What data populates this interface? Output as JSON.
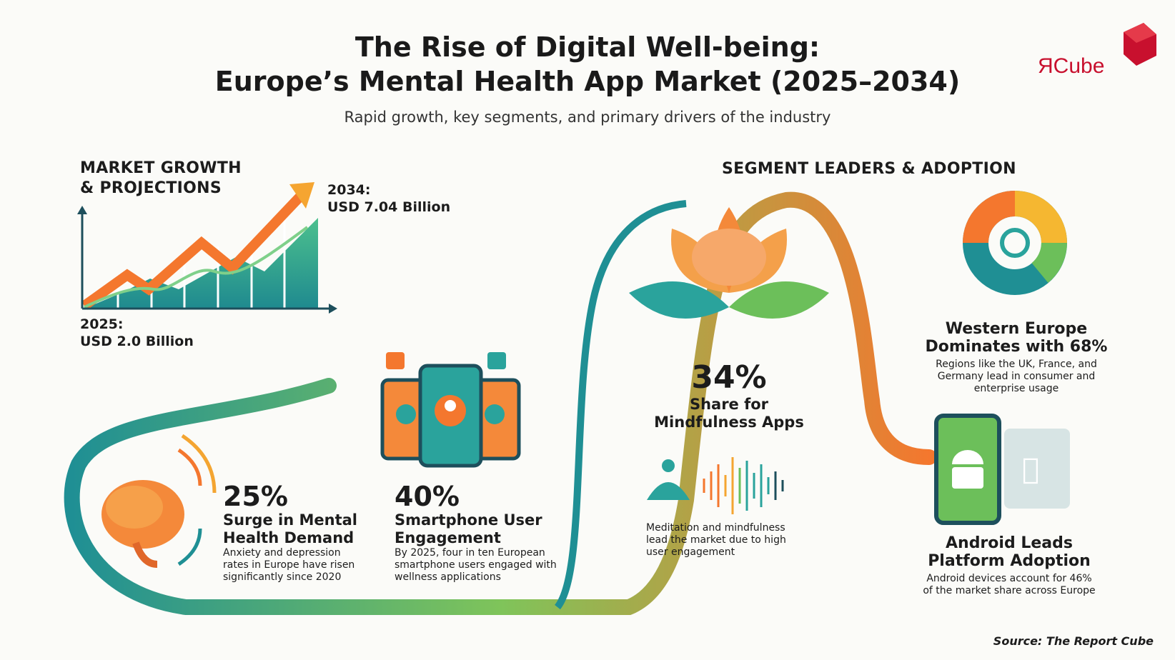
{
  "header": {
    "title_line1": "The Rise of Digital Well-being:",
    "title_line2": "Europe’s Mental Health App Market (2025–2034)",
    "subtitle": "Rapid growth, key segments, and primary drivers of the industry"
  },
  "logo": {
    "text": "ЯCube",
    "brand_color": "#c8102e"
  },
  "growth": {
    "heading_line1": "MARKET GROWTH",
    "heading_line2": "& PROJECTIONS",
    "start_year": "2025:",
    "start_value": "USD 2.0 Billion",
    "end_year": "2034:",
    "end_value": "USD 7.04 Billion"
  },
  "segments": {
    "heading": "SEGMENT LEADERS & ADOPTION"
  },
  "stats": [
    {
      "value": "25%",
      "title_line1": "Surge in Mental",
      "title_line2": "Health Demand",
      "desc": [
        "Anxiety and depression",
        "rates in Europe have risen",
        "significantly since 2020"
      ]
    },
    {
      "value": "40%",
      "title_line1": "Smartphone User",
      "title_line2": "Engagement",
      "desc": [
        "By 2025, four in ten European",
        "smartphone users engaged with",
        "wellness applications"
      ]
    },
    {
      "value": "34%",
      "title_line1": "Share for",
      "title_line2": "Mindfulness Apps",
      "desc": [
        "Meditation and mindfulness",
        "lead the market due to high",
        "user engagement"
      ]
    },
    {
      "value": "",
      "title_line1": "Western Europe",
      "title_line2": "Dominates with 68%",
      "desc": [
        "Regions like the UK, France, and",
        "Germany lead in consumer and",
        "enterprise usage"
      ]
    },
    {
      "value": "",
      "title_line1": "Android Leads",
      "title_line2": "Platform Adoption",
      "desc": [
        "Android devices account for 46%",
        "of the market share across Europe"
      ]
    }
  ],
  "footer": {
    "source": "Source: The Report Cube"
  },
  "colors": {
    "teal": "#1f8f94",
    "green": "#6cbf5a",
    "orange": "#f4772e",
    "yellow": "#f5b731",
    "dark": "#1d4f5c"
  }
}
